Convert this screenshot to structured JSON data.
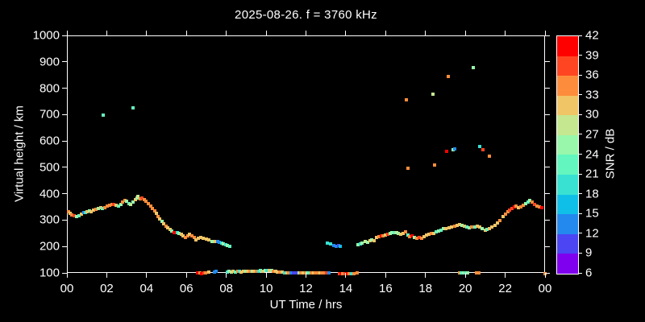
{
  "window": {
    "background": "#000000",
    "foreground": "#ffffff"
  },
  "chart_data": {
    "type": "scatter",
    "title": "2025-08-26. f = 3760 kHz",
    "xlabel": "UT Time / hrs",
    "ylabel": "Virtual height / km",
    "xlim": [
      0,
      24
    ],
    "ylim": [
      100,
      1000
    ],
    "grid": false,
    "xticks": {
      "values": [
        0,
        2,
        4,
        6,
        8,
        10,
        12,
        14,
        16,
        18,
        20,
        22,
        24
      ],
      "labels": [
        "00",
        "02",
        "04",
        "06",
        "08",
        "10",
        "12",
        "14",
        "16",
        "18",
        "20",
        "22",
        "00"
      ]
    },
    "yticks": {
      "values": [
        100,
        200,
        300,
        400,
        500,
        600,
        700,
        800,
        900,
        1000
      ],
      "labels": [
        "100",
        "200",
        "300",
        "400",
        "500",
        "600",
        "700",
        "800",
        "900",
        "1000"
      ]
    },
    "colorbar": {
      "label": "SNR / dB",
      "min": 6,
      "max": 42,
      "tick_values": [
        6,
        9,
        12,
        15,
        18,
        21,
        24,
        27,
        30,
        33,
        36,
        39,
        42
      ],
      "segment_colors": [
        "#7E00EE",
        "#4B45F3",
        "#2389EE",
        "#10BFE8",
        "#38E1D2",
        "#63F6BF",
        "#98F7AB",
        "#C5E78F",
        "#F0C566",
        "#FD8D3C",
        "#FF4522",
        "#FF0000"
      ]
    },
    "point_color_encoding": "each point = [UT hours, virtual height km, color index 0-11 into colorbar.segment_colors where 0 = 6-9 dB and 11 = 39-42 dB]",
    "points": [
      [
        0.02,
        335,
        9
      ],
      [
        0.12,
        329,
        8
      ],
      [
        0.22,
        323,
        9
      ],
      [
        0.33,
        320,
        10
      ],
      [
        0.45,
        317,
        6
      ],
      [
        0.57,
        320,
        5
      ],
      [
        0.7,
        326,
        8
      ],
      [
        0.8,
        332,
        2
      ],
      [
        0.88,
        331,
        4
      ],
      [
        0.97,
        335,
        8
      ],
      [
        1.08,
        338,
        6
      ],
      [
        1.18,
        335,
        8
      ],
      [
        1.3,
        341,
        8
      ],
      [
        1.42,
        344,
        9
      ],
      [
        1.54,
        347,
        6
      ],
      [
        1.66,
        350,
        8
      ],
      [
        1.76,
        347,
        5
      ],
      [
        1.88,
        350,
        9
      ],
      [
        2.0,
        356,
        9
      ],
      [
        2.1,
        359,
        9
      ],
      [
        2.22,
        362,
        9
      ],
      [
        2.32,
        362,
        10
      ],
      [
        2.42,
        359,
        8
      ],
      [
        2.54,
        356,
        5
      ],
      [
        2.66,
        362,
        6
      ],
      [
        2.76,
        371,
        9
      ],
      [
        2.86,
        377,
        9
      ],
      [
        2.96,
        374,
        6
      ],
      [
        3.06,
        365,
        5
      ],
      [
        3.16,
        362,
        7
      ],
      [
        3.26,
        371,
        6
      ],
      [
        3.38,
        380,
        8
      ],
      [
        3.48,
        387,
        6
      ],
      [
        3.54,
        393,
        7
      ],
      [
        3.64,
        384,
        9
      ],
      [
        3.74,
        387,
        10
      ],
      [
        3.84,
        381,
        9
      ],
      [
        3.94,
        374,
        9
      ],
      [
        4.04,
        365,
        9
      ],
      [
        4.16,
        356,
        9
      ],
      [
        4.26,
        347,
        9
      ],
      [
        4.36,
        338,
        9
      ],
      [
        4.44,
        329,
        8
      ],
      [
        4.52,
        317,
        9
      ],
      [
        4.62,
        308,
        8
      ],
      [
        4.72,
        298,
        6
      ],
      [
        4.82,
        289,
        8
      ],
      [
        4.92,
        280,
        9
      ],
      [
        5.02,
        274,
        8
      ],
      [
        5.12,
        268,
        8
      ],
      [
        5.24,
        262,
        6
      ],
      [
        5.35,
        256,
        11
      ],
      [
        5.42,
        256,
        11
      ],
      [
        5.5,
        256,
        4
      ],
      [
        5.6,
        253,
        6
      ],
      [
        5.7,
        250,
        8
      ],
      [
        5.8,
        244,
        8
      ],
      [
        5.9,
        238,
        9
      ],
      [
        6.02,
        244,
        9
      ],
      [
        6.12,
        250,
        8
      ],
      [
        6.24,
        244,
        9
      ],
      [
        6.34,
        238,
        9
      ],
      [
        6.45,
        229,
        8
      ],
      [
        6.56,
        234,
        8
      ],
      [
        6.68,
        238,
        8
      ],
      [
        6.8,
        235,
        8
      ],
      [
        6.95,
        231,
        8
      ],
      [
        7.1,
        228,
        8
      ],
      [
        7.25,
        223,
        6
      ],
      [
        7.4,
        223,
        8
      ],
      [
        7.52,
        223,
        2
      ],
      [
        7.62,
        220,
        2
      ],
      [
        7.72,
        217,
        4
      ],
      [
        7.82,
        214,
        6
      ],
      [
        7.92,
        211,
        4
      ],
      [
        8.02,
        208,
        6
      ],
      [
        8.12,
        205,
        5
      ],
      [
        13.05,
        217,
        4
      ],
      [
        13.18,
        214,
        4
      ],
      [
        13.35,
        208,
        2
      ],
      [
        13.48,
        205,
        2
      ],
      [
        13.58,
        208,
        1
      ],
      [
        13.68,
        205,
        3
      ],
      [
        14.56,
        211,
        6
      ],
      [
        14.68,
        214,
        4
      ],
      [
        14.78,
        217,
        6
      ],
      [
        14.93,
        223,
        7
      ],
      [
        15.05,
        220,
        6
      ],
      [
        15.17,
        226,
        8
      ],
      [
        15.26,
        229,
        6
      ],
      [
        15.38,
        226,
        8
      ],
      [
        15.5,
        236,
        8
      ],
      [
        15.62,
        240,
        9
      ],
      [
        15.73,
        243,
        11
      ],
      [
        15.84,
        243,
        9
      ],
      [
        15.96,
        246,
        8
      ],
      [
        16.06,
        249,
        10
      ],
      [
        16.17,
        252,
        6
      ],
      [
        16.28,
        256,
        6
      ],
      [
        16.38,
        256,
        5
      ],
      [
        16.5,
        256,
        7
      ],
      [
        16.6,
        252,
        6
      ],
      [
        16.72,
        249,
        8
      ],
      [
        16.84,
        253,
        8
      ],
      [
        16.95,
        258,
        9
      ],
      [
        17.06,
        246,
        5
      ],
      [
        17.16,
        240,
        9
      ],
      [
        17.28,
        243,
        11
      ],
      [
        17.4,
        237,
        6
      ],
      [
        17.52,
        233,
        9
      ],
      [
        17.64,
        238,
        10
      ],
      [
        17.76,
        235,
        9
      ],
      [
        17.88,
        241,
        8
      ],
      [
        18.0,
        246,
        8
      ],
      [
        18.12,
        250,
        8
      ],
      [
        18.24,
        253,
        9
      ],
      [
        18.36,
        252,
        8
      ],
      [
        18.5,
        258,
        5
      ],
      [
        18.62,
        262,
        6
      ],
      [
        18.75,
        266,
        5
      ],
      [
        18.88,
        271,
        6
      ],
      [
        19.0,
        271,
        8
      ],
      [
        19.14,
        274,
        8
      ],
      [
        19.28,
        277,
        8
      ],
      [
        19.42,
        280,
        9
      ],
      [
        19.55,
        283,
        8
      ],
      [
        19.68,
        286,
        8
      ],
      [
        19.8,
        283,
        6
      ],
      [
        19.92,
        280,
        8
      ],
      [
        20.04,
        277,
        5
      ],
      [
        20.16,
        274,
        6
      ],
      [
        20.28,
        277,
        9
      ],
      [
        20.42,
        277,
        5
      ],
      [
        20.55,
        280,
        8
      ],
      [
        20.68,
        277,
        8
      ],
      [
        20.82,
        271,
        6
      ],
      [
        20.95,
        265,
        8
      ],
      [
        21.05,
        268,
        5
      ],
      [
        21.18,
        271,
        8
      ],
      [
        21.3,
        277,
        8
      ],
      [
        21.45,
        283,
        8
      ],
      [
        21.58,
        292,
        8
      ],
      [
        21.7,
        301,
        9
      ],
      [
        21.84,
        317,
        8
      ],
      [
        21.96,
        326,
        9
      ],
      [
        22.08,
        335,
        9
      ],
      [
        22.18,
        341,
        10
      ],
      [
        22.3,
        347,
        10
      ],
      [
        22.42,
        353,
        11
      ],
      [
        22.52,
        356,
        9
      ],
      [
        22.64,
        350,
        8
      ],
      [
        22.76,
        353,
        9
      ],
      [
        22.88,
        359,
        9
      ],
      [
        23.0,
        365,
        6
      ],
      [
        23.1,
        371,
        5
      ],
      [
        23.2,
        377,
        6
      ],
      [
        23.32,
        371,
        9
      ],
      [
        23.42,
        362,
        10
      ],
      [
        23.55,
        356,
        9
      ],
      [
        23.68,
        353,
        9
      ],
      [
        23.8,
        350,
        11
      ],
      [
        6.52,
        103,
        11
      ],
      [
        6.62,
        103,
        9
      ],
      [
        6.72,
        100,
        11
      ],
      [
        6.82,
        103,
        10
      ],
      [
        6.94,
        103,
        9
      ],
      [
        7.08,
        105,
        8
      ],
      [
        7.35,
        106,
        2
      ],
      [
        7.46,
        108,
        2
      ],
      [
        8.0,
        106,
        4
      ],
      [
        8.1,
        109,
        6
      ],
      [
        8.2,
        107,
        7
      ],
      [
        8.3,
        108,
        8
      ],
      [
        8.4,
        106,
        5
      ],
      [
        8.52,
        108,
        9
      ],
      [
        8.62,
        109,
        4
      ],
      [
        8.72,
        107,
        8
      ],
      [
        8.82,
        109,
        8
      ],
      [
        8.94,
        108,
        6
      ],
      [
        9.04,
        110,
        8
      ],
      [
        9.14,
        109,
        9
      ],
      [
        9.26,
        110,
        6
      ],
      [
        9.36,
        108,
        8
      ],
      [
        9.46,
        110,
        9
      ],
      [
        9.58,
        109,
        4
      ],
      [
        9.68,
        111,
        5
      ],
      [
        9.8,
        110,
        8
      ],
      [
        9.9,
        112,
        6
      ],
      [
        10.0,
        112,
        4
      ],
      [
        10.1,
        111,
        8
      ],
      [
        10.22,
        112,
        6
      ],
      [
        10.32,
        110,
        9
      ],
      [
        10.44,
        109,
        8
      ],
      [
        10.54,
        107,
        8
      ],
      [
        10.64,
        106,
        9
      ],
      [
        10.76,
        105,
        8
      ],
      [
        10.88,
        104,
        4
      ],
      [
        11.0,
        103,
        8
      ],
      [
        11.1,
        103,
        9
      ],
      [
        11.2,
        104,
        2
      ],
      [
        11.34,
        103,
        1
      ],
      [
        11.44,
        103,
        1
      ],
      [
        11.6,
        104,
        6
      ],
      [
        11.7,
        103,
        9
      ],
      [
        11.8,
        103,
        8
      ],
      [
        11.92,
        104,
        9
      ],
      [
        12.02,
        103,
        6
      ],
      [
        12.12,
        103,
        5
      ],
      [
        12.24,
        103,
        9
      ],
      [
        12.34,
        104,
        8
      ],
      [
        12.44,
        103,
        9
      ],
      [
        12.56,
        103,
        9
      ],
      [
        12.66,
        104,
        8
      ],
      [
        12.76,
        103,
        9
      ],
      [
        12.88,
        103,
        9
      ],
      [
        13.0,
        104,
        10
      ],
      [
        13.1,
        103,
        2
      ],
      [
        13.62,
        100,
        10
      ],
      [
        13.72,
        100,
        11
      ],
      [
        13.82,
        101,
        9
      ],
      [
        13.92,
        100,
        10
      ],
      [
        14.02,
        101,
        11
      ],
      [
        14.12,
        100,
        9
      ],
      [
        14.25,
        101,
        4
      ],
      [
        14.35,
        100,
        9
      ],
      [
        14.52,
        103,
        9
      ],
      [
        19.66,
        103,
        9
      ],
      [
        19.76,
        103,
        5
      ],
      [
        19.86,
        103,
        6
      ],
      [
        19.96,
        103,
        5
      ],
      [
        20.06,
        103,
        6
      ],
      [
        20.5,
        103,
        9
      ],
      [
        20.64,
        103,
        9
      ],
      [
        23.95,
        100,
        9
      ],
      [
        1.78,
        701,
        5
      ],
      [
        3.29,
        728,
        5
      ],
      [
        17.0,
        759,
        9
      ],
      [
        18.33,
        780,
        7
      ],
      [
        19.1,
        847,
        9
      ],
      [
        20.36,
        881,
        6
      ],
      [
        17.08,
        500,
        9
      ],
      [
        18.41,
        512,
        9
      ],
      [
        19.02,
        564,
        11
      ],
      [
        19.35,
        570,
        6
      ],
      [
        19.43,
        573,
        2
      ],
      [
        20.68,
        582,
        4
      ],
      [
        20.84,
        570,
        10
      ],
      [
        21.16,
        546,
        9
      ]
    ]
  }
}
